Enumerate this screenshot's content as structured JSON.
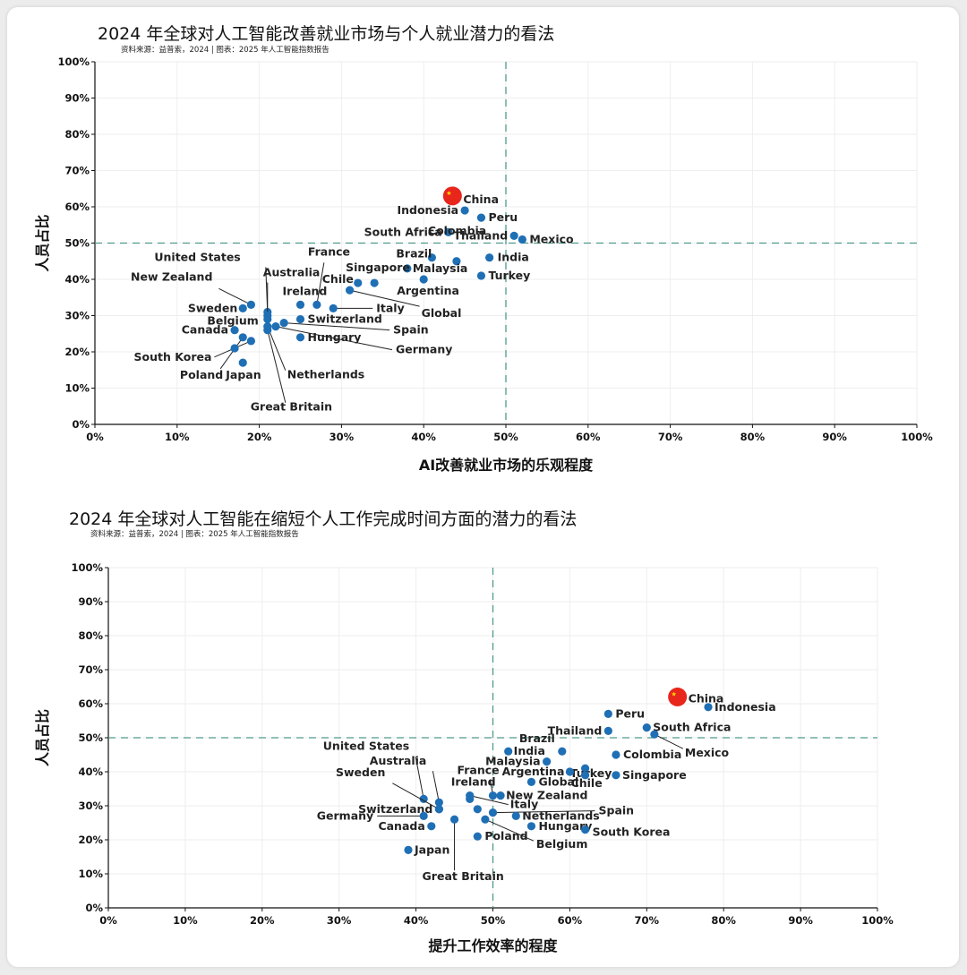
{
  "chart_data": [
    {
      "type": "scatter",
      "title": "2024 年全球对人工智能改善就业市场与个人就业潜力的看法",
      "source": "资料来源：益普索，2024 | 图表：2025 年人工智能指数报告",
      "xlabel": "AI改善就业市场的乐观程度",
      "ylabel": "人员占比",
      "xlim": [
        0,
        100
      ],
      "ylim": [
        0,
        100
      ],
      "xticks": [
        "0%",
        "10%",
        "20%",
        "30%",
        "40%",
        "50%",
        "60%",
        "70%",
        "80%",
        "90%",
        "100%"
      ],
      "yticks": [
        "0%",
        "10%",
        "20%",
        "30%",
        "40%",
        "50%",
        "60%",
        "70%",
        "80%",
        "90%",
        "100%"
      ],
      "reference_lines": {
        "x": 50,
        "y": 50
      },
      "grid": true,
      "highlight_color": "#e8261c",
      "point_color": "#1f6fb5",
      "points": [
        {
          "label": "China",
          "x": 43.5,
          "y": 63,
          "highlight": true
        },
        {
          "label": "Indonesia",
          "x": 45,
          "y": 59
        },
        {
          "label": "Peru",
          "x": 47,
          "y": 57
        },
        {
          "label": "South Africa",
          "x": 43,
          "y": 53
        },
        {
          "label": "Thailand",
          "x": 51,
          "y": 52
        },
        {
          "label": "Mexico",
          "x": 52,
          "y": 51
        },
        {
          "label": "Colombia",
          "x": 44,
          "y": 45
        },
        {
          "label": "India",
          "x": 48,
          "y": 46
        },
        {
          "label": "Brazil",
          "x": 41,
          "y": 46
        },
        {
          "label": "Malaysia",
          "x": 38,
          "y": 43
        },
        {
          "label": "Singapore",
          "x": 34,
          "y": 39
        },
        {
          "label": "Turkey",
          "x": 47,
          "y": 41
        },
        {
          "label": "Argentina",
          "x": 40,
          "y": 40
        },
        {
          "label": "Chile",
          "x": 32,
          "y": 39
        },
        {
          "label": "Global",
          "x": 31,
          "y": 37
        },
        {
          "label": "France",
          "x": 27,
          "y": 33
        },
        {
          "label": "Ireland",
          "x": 25,
          "y": 33
        },
        {
          "label": "Italy",
          "x": 29,
          "y": 32
        },
        {
          "label": "Switzerland",
          "x": 25,
          "y": 29
        },
        {
          "label": "Spain",
          "x": 23,
          "y": 28
        },
        {
          "label": "Germany",
          "x": 22,
          "y": 27
        },
        {
          "label": "Hungary",
          "x": 25,
          "y": 24
        },
        {
          "label": "United States",
          "x": 21,
          "y": 31
        },
        {
          "label": "Australia",
          "x": 21,
          "y": 30
        },
        {
          "label": "New Zealand",
          "x": 19,
          "y": 33
        },
        {
          "label": "Sweden",
          "x": 18,
          "y": 32
        },
        {
          "label": "Belgium",
          "x": 21,
          "y": 29
        },
        {
          "label": "Netherlands",
          "x": 21,
          "y": 27
        },
        {
          "label": "Great Britain",
          "x": 21,
          "y": 26
        },
        {
          "label": "Canada",
          "x": 17,
          "y": 26
        },
        {
          "label": "South Korea",
          "x": 19,
          "y": 23
        },
        {
          "label": "Poland",
          "x": 18,
          "y": 24
        },
        {
          "label": "Japan",
          "x": 18,
          "y": 17
        },
        {
          "label": "",
          "x": 17,
          "y": 21
        }
      ]
    },
    {
      "type": "scatter",
      "title": "2024 年全球对人工智能在缩短个人工作完成时间方面的潜力的看法",
      "source": "资料来源：益普索，2024 | 图表：2025 年人工智能指数报告",
      "xlabel": "提升工作效率的程度",
      "ylabel": "人员占比",
      "xlim": [
        0,
        100
      ],
      "ylim": [
        0,
        100
      ],
      "xticks": [
        "0%",
        "10%",
        "20%",
        "30%",
        "40%",
        "50%",
        "60%",
        "70%",
        "80%",
        "90%",
        "100%"
      ],
      "yticks": [
        "0%",
        "10%",
        "20%",
        "30%",
        "40%",
        "50%",
        "60%",
        "70%",
        "80%",
        "90%",
        "100%"
      ],
      "reference_lines": {
        "x": 50,
        "y": 50
      },
      "grid": true,
      "highlight_color": "#e8261c",
      "point_color": "#1f6fb5",
      "points": [
        {
          "label": "China",
          "x": 74,
          "y": 62,
          "highlight": true
        },
        {
          "label": "Indonesia",
          "x": 78,
          "y": 59
        },
        {
          "label": "Peru",
          "x": 65,
          "y": 57
        },
        {
          "label": "South Africa",
          "x": 70,
          "y": 53
        },
        {
          "label": "Thailand",
          "x": 65,
          "y": 52
        },
        {
          "label": "Mexico",
          "x": 71,
          "y": 51
        },
        {
          "label": "Brazil",
          "x": 59,
          "y": 46
        },
        {
          "label": "Colombia",
          "x": 66,
          "y": 45
        },
        {
          "label": "India",
          "x": 52,
          "y": 46
        },
        {
          "label": "Malaysia",
          "x": 57,
          "y": 43
        },
        {
          "label": "Turkey",
          "x": 62,
          "y": 41
        },
        {
          "label": "Argentina",
          "x": 60,
          "y": 40
        },
        {
          "label": "Singapore",
          "x": 66,
          "y": 39
        },
        {
          "label": "Chile",
          "x": 62,
          "y": 39
        },
        {
          "label": "Global",
          "x": 55,
          "y": 37
        },
        {
          "label": "France",
          "x": 50,
          "y": 33
        },
        {
          "label": "New Zealand",
          "x": 51,
          "y": 33
        },
        {
          "label": "Ireland",
          "x": 47,
          "y": 32
        },
        {
          "label": "Italy",
          "x": 47,
          "y": 33
        },
        {
          "label": "Spain",
          "x": 50,
          "y": 28
        },
        {
          "label": "United States",
          "x": 41,
          "y": 32
        },
        {
          "label": "Australia",
          "x": 43,
          "y": 31
        },
        {
          "label": "Sweden",
          "x": 43,
          "y": 29
        },
        {
          "label": "Switzerland",
          "x": 43,
          "y": 29
        },
        {
          "label": "Germany",
          "x": 41,
          "y": 27
        },
        {
          "label": "Canada",
          "x": 42,
          "y": 24
        },
        {
          "label": "Netherlands",
          "x": 53,
          "y": 27
        },
        {
          "label": "Hungary",
          "x": 55,
          "y": 24
        },
        {
          "label": "South Korea",
          "x": 62,
          "y": 23
        },
        {
          "label": "Belgium",
          "x": 49,
          "y": 26
        },
        {
          "label": "Poland",
          "x": 48,
          "y": 21
        },
        {
          "label": "Great Britain",
          "x": 45,
          "y": 26
        },
        {
          "label": "Japan",
          "x": 39,
          "y": 17
        },
        {
          "label": "",
          "x": 48,
          "y": 29
        }
      ]
    }
  ]
}
